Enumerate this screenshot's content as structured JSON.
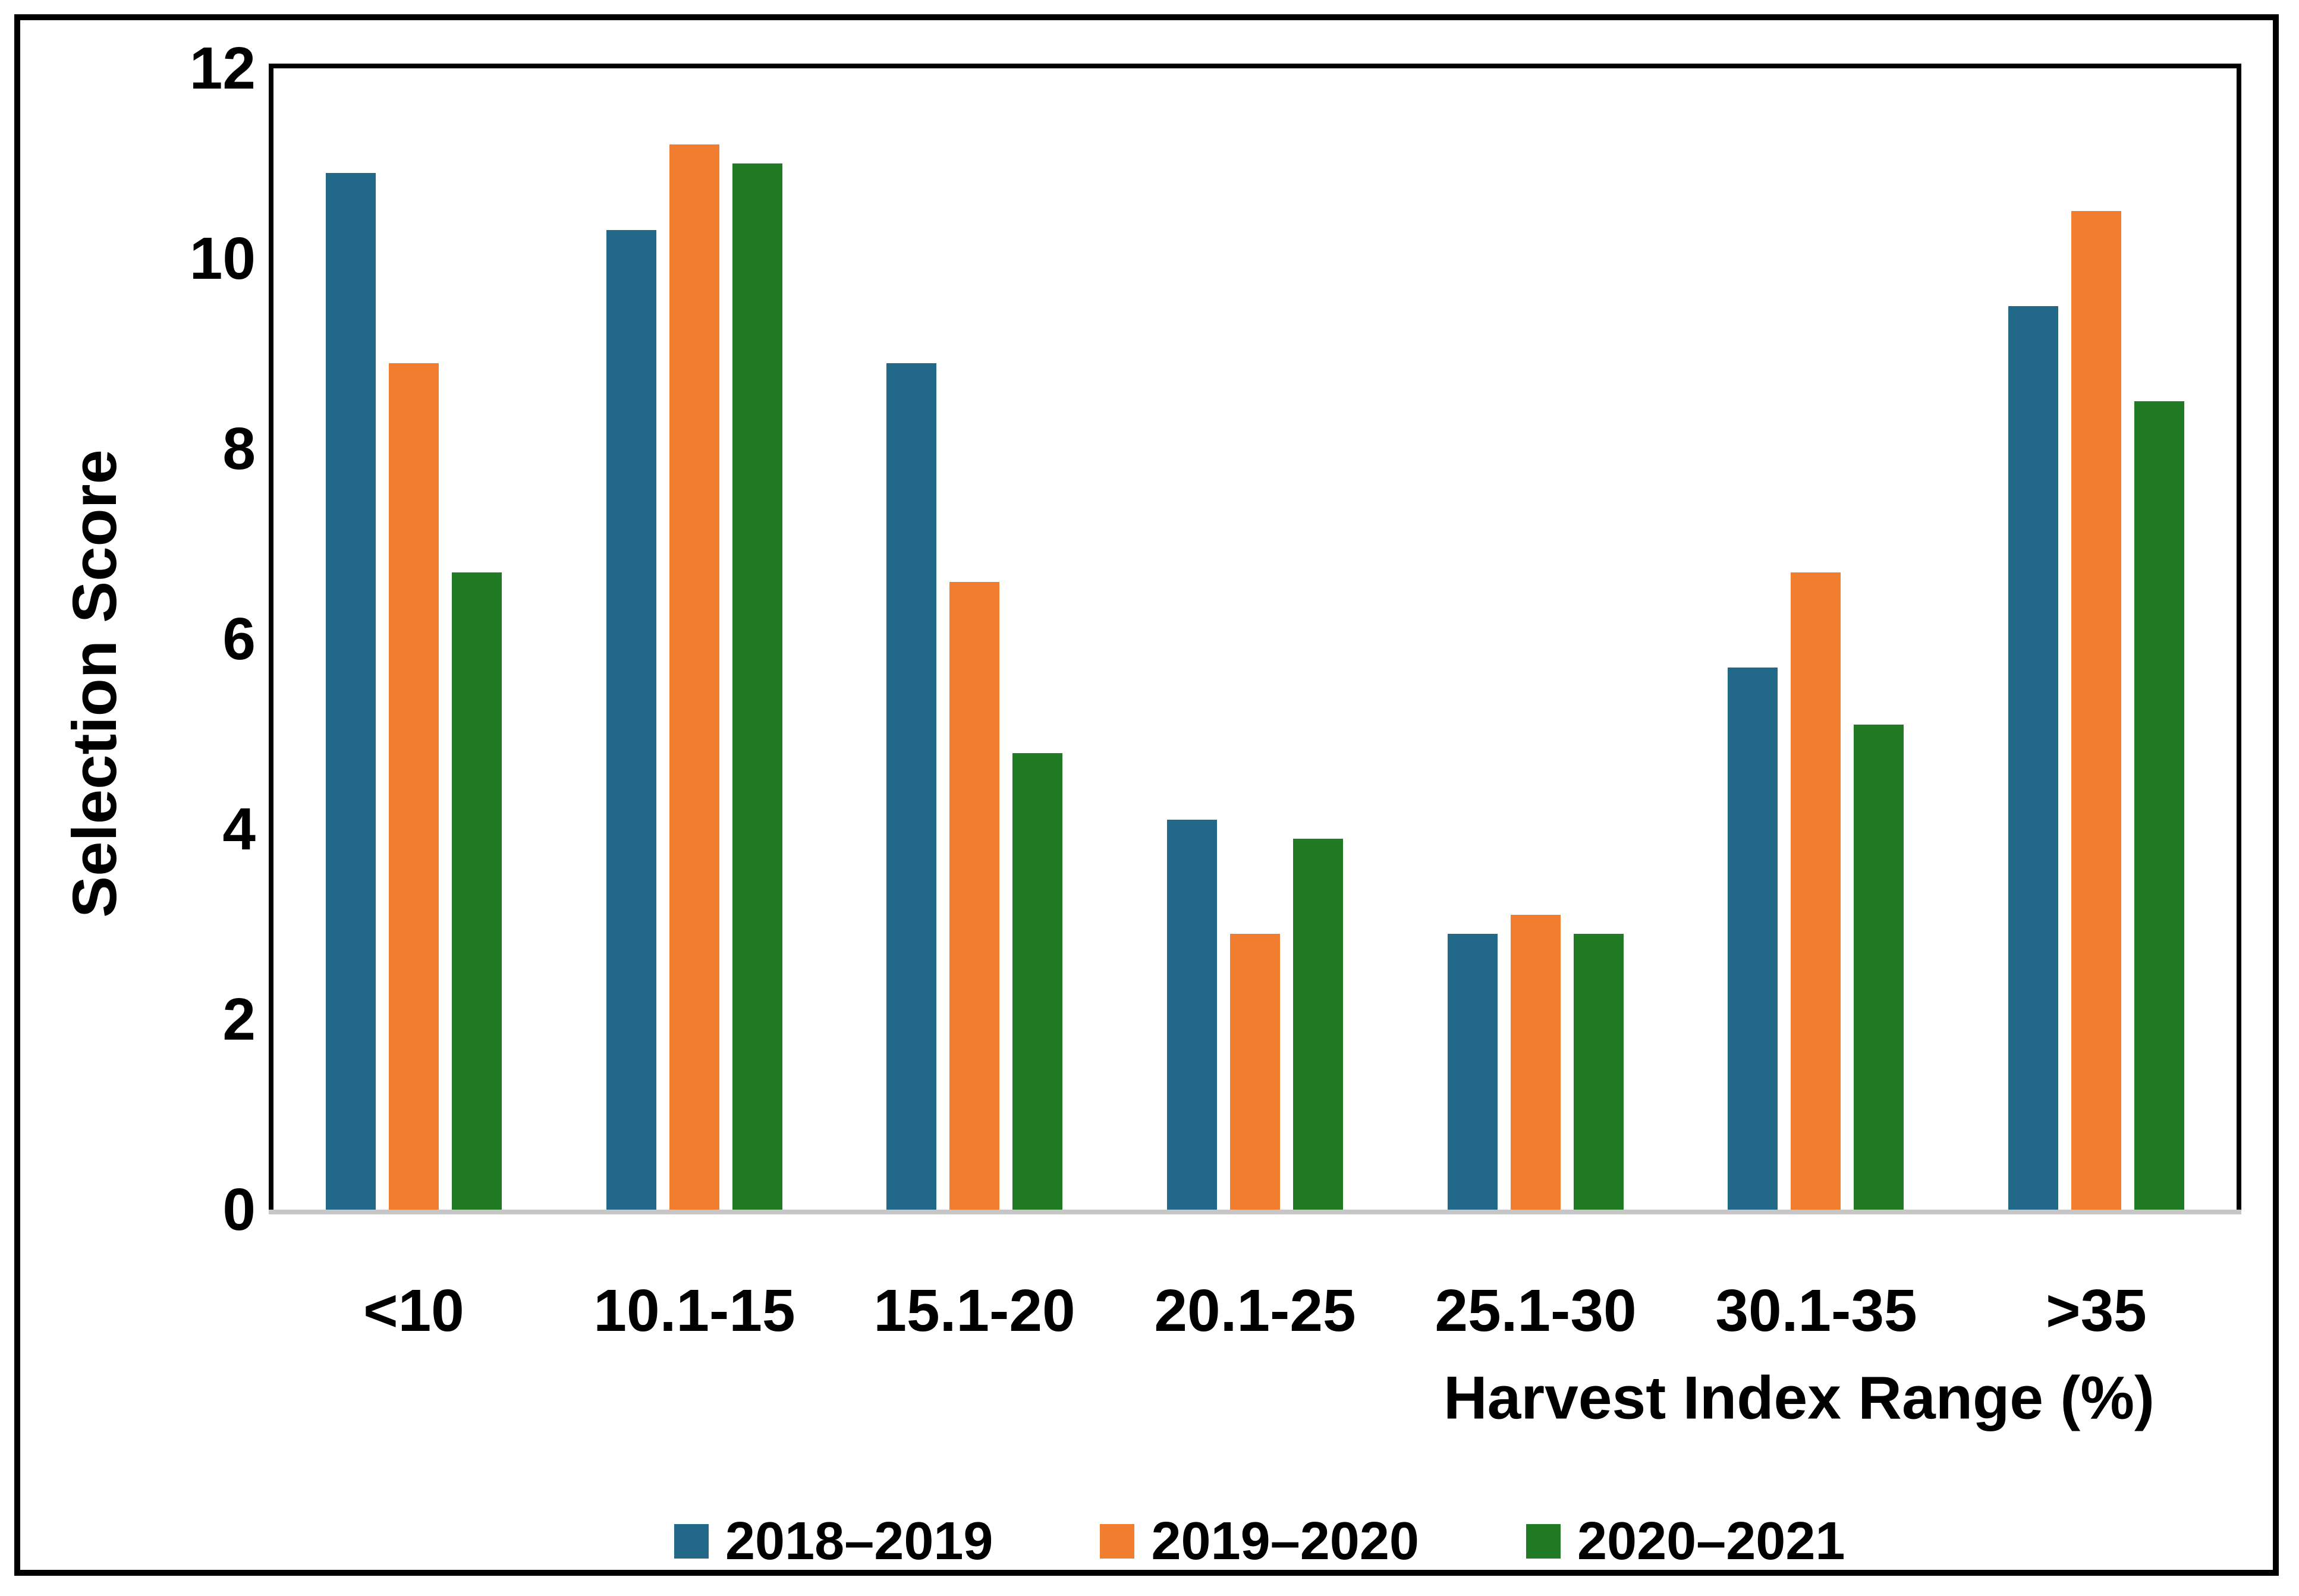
{
  "figure": {
    "background": "#FFFFFF",
    "frame_color": "#000000"
  },
  "chart_data": {
    "type": "bar",
    "title": "",
    "xlabel": "Harvest Index Range (%)",
    "ylabel": "Selection Score",
    "categories": [
      "<10",
      "10.1-15",
      "15.1-20",
      "20.1-25",
      "25.1-30",
      "30.1-35",
      ">35"
    ],
    "series": [
      {
        "name": "2018–2019",
        "color": "#226889",
        "values": [
          10.9,
          10.3,
          8.9,
          4.1,
          2.9,
          5.7,
          9.5
        ]
      },
      {
        "name": "2019–2020",
        "color": "#F07E2E",
        "values": [
          8.9,
          11.2,
          6.6,
          2.9,
          3.1,
          6.7,
          10.5
        ]
      },
      {
        "name": "2020–2021",
        "color": "#217B25",
        "values": [
          6.7,
          11.0,
          4.8,
          3.9,
          2.9,
          5.1,
          8.5
        ]
      }
    ],
    "yticks": [
      0,
      2,
      4,
      6,
      8,
      10,
      12
    ],
    "ylim": [
      0,
      12
    ],
    "grid": false,
    "legend_position": "bottom",
    "axis_line_color": "#C6C6C6",
    "spine_color": "#000000"
  }
}
